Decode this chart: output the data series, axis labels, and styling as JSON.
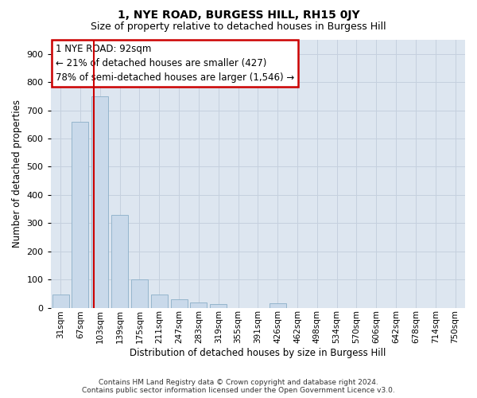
{
  "title": "1, NYE ROAD, BURGESS HILL, RH15 0JY",
  "subtitle": "Size of property relative to detached houses in Burgess Hill",
  "xlabel": "Distribution of detached houses by size in Burgess Hill",
  "ylabel": "Number of detached properties",
  "footer_line1": "Contains HM Land Registry data © Crown copyright and database right 2024.",
  "footer_line2": "Contains public sector information licensed under the Open Government Licence v3.0.",
  "bar_color": "#c9d9ea",
  "bar_edge_color": "#8baec8",
  "grid_color": "#c5d0de",
  "bg_color": "#dde6f0",
  "annotation_box_color": "#cc0000",
  "property_line_color": "#cc0000",
  "annotation_text": "1 NYE ROAD: 92sqm\n← 21% of detached houses are smaller (427)\n78% of semi-detached houses are larger (1,546) →",
  "categories": [
    "31sqm",
    "67sqm",
    "103sqm",
    "139sqm",
    "175sqm",
    "211sqm",
    "247sqm",
    "283sqm",
    "319sqm",
    "355sqm",
    "391sqm",
    "426sqm",
    "462sqm",
    "498sqm",
    "534sqm",
    "570sqm",
    "606sqm",
    "642sqm",
    "678sqm",
    "714sqm",
    "750sqm"
  ],
  "values": [
    47,
    660,
    750,
    330,
    100,
    47,
    30,
    18,
    12,
    0,
    0,
    15,
    0,
    0,
    0,
    0,
    0,
    0,
    0,
    0,
    0
  ],
  "ylim": [
    0,
    950
  ],
  "yticks": [
    0,
    100,
    200,
    300,
    400,
    500,
    600,
    700,
    800,
    900
  ],
  "property_line_x": 1.69,
  "title_fontsize": 10,
  "subtitle_fontsize": 9,
  "annotation_fontsize": 8.5
}
